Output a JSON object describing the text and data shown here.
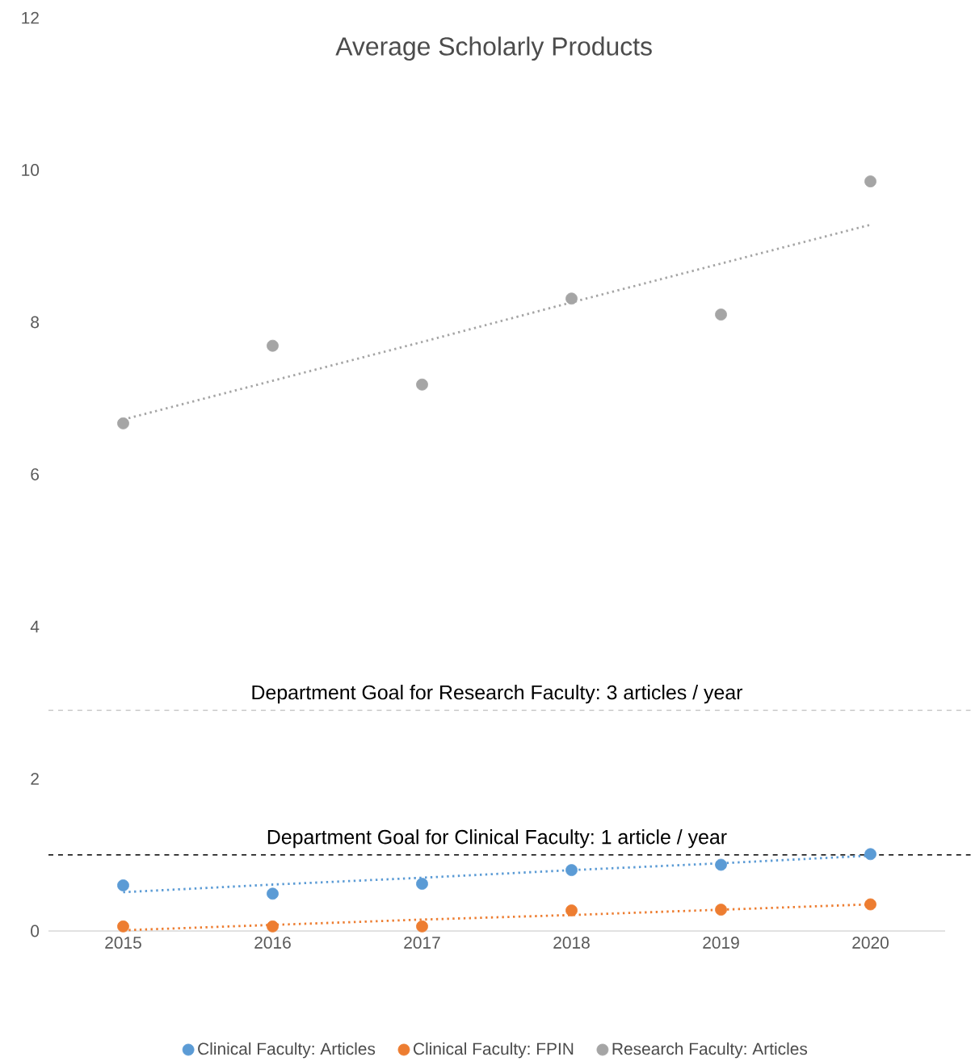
{
  "chart_data": {
    "type": "scatter",
    "title": "Average Scholarly Products",
    "x": [
      2015,
      2016,
      2017,
      2018,
      2019,
      2020
    ],
    "series": [
      {
        "name": "Clinical Faculty: Articles",
        "color": "#5b9bd5",
        "marker": "circle",
        "values": [
          0.6,
          0.49,
          0.62,
          0.8,
          0.87,
          1.01
        ]
      },
      {
        "name": "Clinical Faculty: FPIN",
        "color": "#ed7d31",
        "marker": "circle",
        "values": [
          0.06,
          0.06,
          0.06,
          0.27,
          0.28,
          0.35
        ]
      },
      {
        "name": "Research Faculty: Articles",
        "color": "#a5a5a5",
        "marker": "circle",
        "values": [
          6.67,
          7.69,
          7.18,
          8.31,
          8.1,
          9.85
        ]
      },
      {
        "type": "line",
        "color": "#5b9bd5",
        "values": [
          0.51,
          0.61,
          0.7,
          0.8,
          0.89,
          0.99
        ],
        "line_style": "dotted",
        "marker": "none"
      },
      {
        "type": "line",
        "color": "#ed7d31",
        "values": [
          0.01,
          0.08,
          0.15,
          0.21,
          0.28,
          0.35
        ],
        "line_style": "dotted",
        "marker": "none"
      },
      {
        "type": "line",
        "color": "#a5a5a5",
        "values": [
          6.72,
          7.23,
          7.74,
          8.26,
          8.77,
          9.28
        ],
        "line_style": "dotted",
        "marker": "none"
      }
    ],
    "ref_lines": [
      {
        "axis": "y",
        "value": 2.9,
        "label": "Department Goal for Research Faculty: 3 articles / year",
        "color": "#bfbfbf",
        "line_style": "dashed"
      },
      {
        "axis": "y",
        "value": 1.0,
        "label": "Department Goal for Clinical Faculty: 1 article / year",
        "color": "#000000",
        "line_style": "dashed"
      }
    ],
    "xlim": [
      2014.5,
      2020.5
    ],
    "ylim": [
      0,
      12
    ],
    "xticks": [
      2015,
      2016,
      2017,
      2018,
      2019,
      2020
    ],
    "yticks": [
      0,
      2,
      4,
      6,
      8,
      10,
      12
    ],
    "grid": false,
    "legend": "bottom"
  }
}
